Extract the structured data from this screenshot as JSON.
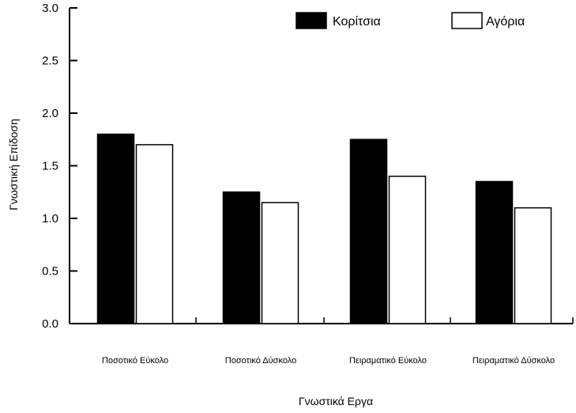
{
  "chart_data": {
    "type": "bar",
    "title": "",
    "xlabel": "Γνωστικά Εργα",
    "ylabel": "Γνωστική Επίδοση",
    "categories": [
      "Ποσοτικό Εύκολο",
      "Ποσοτικό Δύσκολο",
      "Πειραματικό Εύκολο",
      "Πειραματικό Δύσκολο"
    ],
    "series": [
      {
        "name": "Κορίτσια",
        "color": "#000000",
        "values": [
          1.8,
          1.25,
          1.75,
          1.35
        ]
      },
      {
        "name": "Αγόρια",
        "color": "#ffffff",
        "values": [
          1.7,
          1.15,
          1.4,
          1.1
        ]
      }
    ],
    "ylim": [
      0,
      3.0
    ],
    "yticks": [
      "0.0",
      "0.5",
      "1.0",
      "1.5",
      "2.0",
      "2.5",
      "3.0"
    ],
    "grid": false,
    "legend_position": "top-right"
  }
}
